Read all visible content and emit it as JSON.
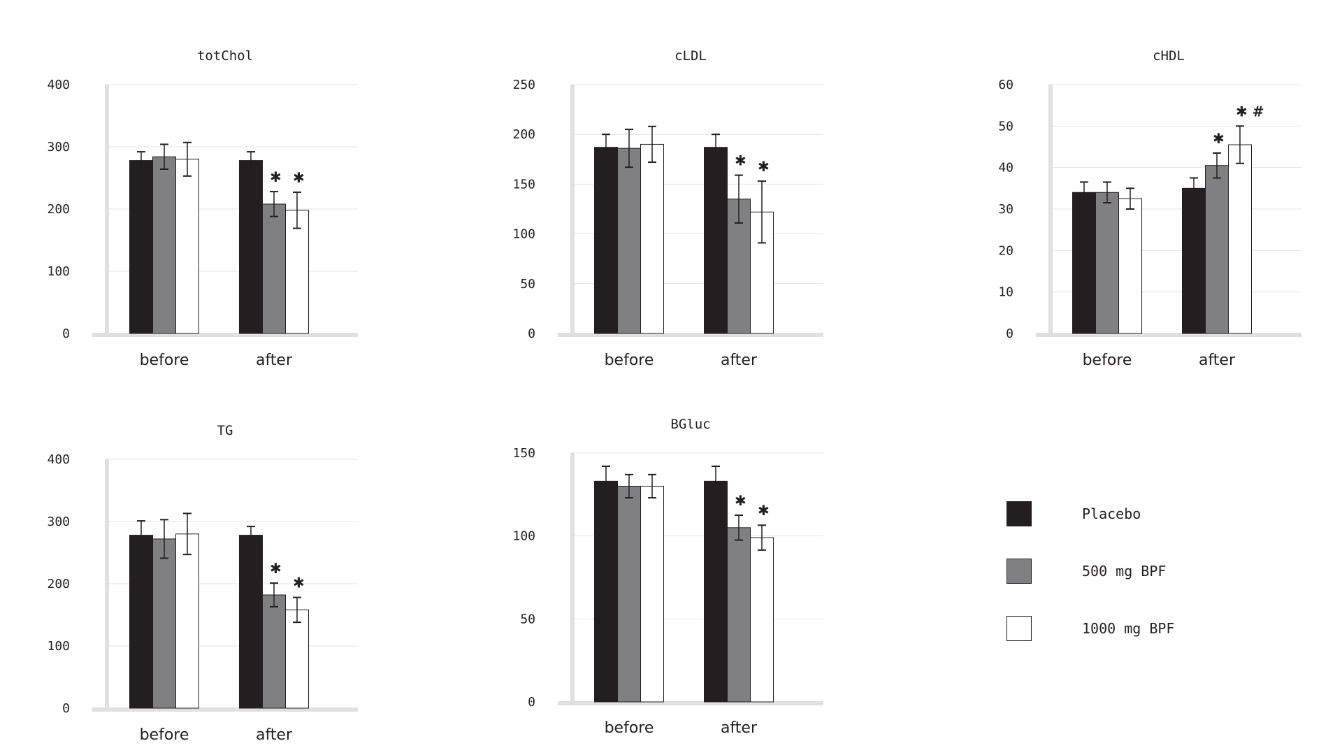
{
  "colors": {
    "placebo": "#231f20",
    "bpf500": "#808083",
    "bpf1000": "#ffffff",
    "gridline": "#e4e4e4",
    "axis": "#e0e0e0",
    "text": "#231f20"
  },
  "legend": [
    {
      "key": "placebo",
      "label": "Placebo"
    },
    {
      "key": "bpf500",
      "label": "500 mg BPF"
    },
    {
      "key": "bpf1000",
      "label": "1000 mg BPF"
    }
  ],
  "chart_data": [
    {
      "type": "bar",
      "title": "totChol",
      "categories": [
        "before",
        "after"
      ],
      "ylim": [
        0,
        400
      ],
      "yticks": [
        0,
        100,
        200,
        300,
        400
      ],
      "series": [
        {
          "name": "Placebo",
          "values": [
            278,
            278
          ],
          "errors": [
            14,
            14
          ]
        },
        {
          "name": "500 mg BPF",
          "values": [
            284,
            208
          ],
          "errors": [
            20,
            20
          ]
        },
        {
          "name": "1000 mg BPF",
          "values": [
            280,
            198
          ],
          "errors": [
            27,
            29
          ]
        }
      ],
      "annotations": [
        {
          "series": 1,
          "category": 1,
          "text": "✱"
        },
        {
          "series": 2,
          "category": 1,
          "text": "✱"
        }
      ]
    },
    {
      "type": "bar",
      "title": "cLDL",
      "categories": [
        "before",
        "after"
      ],
      "ylim": [
        0,
        250
      ],
      "yticks": [
        0,
        50,
        100,
        150,
        200,
        250
      ],
      "series": [
        {
          "name": "Placebo",
          "values": [
            187,
            187
          ],
          "errors": [
            13,
            13
          ]
        },
        {
          "name": "500 mg BPF",
          "values": [
            186,
            135
          ],
          "errors": [
            19,
            24
          ]
        },
        {
          "name": "1000 mg BPF",
          "values": [
            190,
            122
          ],
          "errors": [
            18,
            31
          ]
        }
      ],
      "annotations": [
        {
          "series": 1,
          "category": 1,
          "text": "✱"
        },
        {
          "series": 2,
          "category": 1,
          "text": "✱"
        }
      ]
    },
    {
      "type": "bar",
      "title": "cHDL",
      "categories": [
        "before",
        "after"
      ],
      "ylim": [
        0,
        60
      ],
      "yticks": [
        0,
        10,
        20,
        30,
        40,
        50,
        60
      ],
      "series": [
        {
          "name": "Placebo",
          "values": [
            34,
            35
          ],
          "errors": [
            2.5,
            2.5
          ]
        },
        {
          "name": "500 mg BPF",
          "values": [
            34,
            40.5
          ],
          "errors": [
            2.5,
            3
          ]
        },
        {
          "name": "1000 mg BPF",
          "values": [
            32.5,
            45.5
          ],
          "errors": [
            2.5,
            4.5
          ]
        }
      ],
      "annotations": [
        {
          "series": 1,
          "category": 1,
          "text": "✱"
        },
        {
          "series": 2,
          "category": 1,
          "text": "✱ #"
        }
      ]
    },
    {
      "type": "bar",
      "title": "TG",
      "categories": [
        "before",
        "after"
      ],
      "ylim": [
        0,
        400
      ],
      "yticks": [
        0,
        100,
        200,
        300,
        400
      ],
      "series": [
        {
          "name": "Placebo",
          "values": [
            278,
            278
          ],
          "errors": [
            23,
            14
          ]
        },
        {
          "name": "500 mg BPF",
          "values": [
            272,
            182
          ],
          "errors": [
            31,
            19
          ]
        },
        {
          "name": "1000 mg BPF",
          "values": [
            280,
            158
          ],
          "errors": [
            33,
            20
          ]
        }
      ],
      "annotations": [
        {
          "series": 1,
          "category": 1,
          "text": "✱"
        },
        {
          "series": 2,
          "category": 1,
          "text": "✱"
        }
      ]
    },
    {
      "type": "bar",
      "title": "BGluc",
      "categories": [
        "before",
        "after"
      ],
      "ylim": [
        0,
        150
      ],
      "yticks": [
        0,
        50,
        100,
        150
      ],
      "series": [
        {
          "name": "Placebo",
          "values": [
            133,
            133
          ],
          "errors": [
            9,
            9
          ]
        },
        {
          "name": "500 mg BPF",
          "values": [
            130,
            105
          ],
          "errors": [
            7,
            7.5
          ]
        },
        {
          "name": "1000 mg BPF",
          "values": [
            130,
            99
          ],
          "errors": [
            7,
            7.5
          ]
        }
      ],
      "annotations": [
        {
          "series": 1,
          "category": 1,
          "text": "✱"
        },
        {
          "series": 2,
          "category": 1,
          "text": "✱"
        }
      ]
    }
  ]
}
